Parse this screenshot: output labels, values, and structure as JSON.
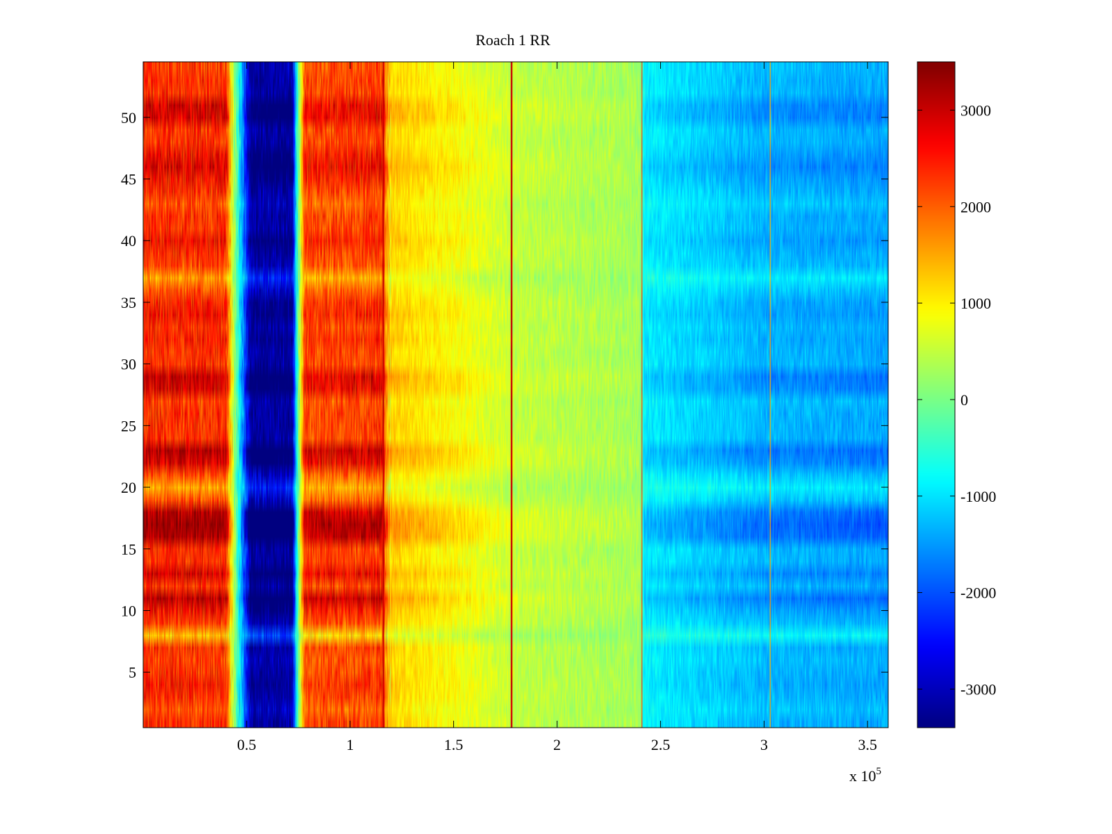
{
  "chart_data": {
    "type": "heatmap",
    "title": "Roach 1 RR",
    "xlabel": "",
    "ylabel": "",
    "x_multiplier_label": "x 10",
    "x_multiplier_exponent": "5",
    "xlim": [
      0,
      360000
    ],
    "ylim": [
      0.5,
      54.5
    ],
    "x_ticks": [
      0.5,
      1,
      1.5,
      2,
      2.5,
      3,
      3.5
    ],
    "x_tick_labels": [
      "0.5",
      "1",
      "1.5",
      "2",
      "2.5",
      "3",
      "3.5"
    ],
    "y_ticks": [
      5,
      10,
      15,
      20,
      25,
      30,
      35,
      40,
      45,
      50
    ],
    "y_tick_labels": [
      "5",
      "10",
      "15",
      "20",
      "25",
      "30",
      "35",
      "40",
      "45",
      "50"
    ],
    "colorbar": {
      "colormap": "jet",
      "clim": [
        -3400,
        3500
      ],
      "ticks": [
        -3000,
        -2000,
        -1000,
        0,
        1000,
        2000,
        3000
      ],
      "tick_labels": [
        "-3000",
        "-2000",
        "-1000",
        "0",
        "1000",
        "2000",
        "3000"
      ]
    },
    "rows": 54,
    "column_profile": [
      {
        "x": 0,
        "value": 2600
      },
      {
        "x": 40000,
        "value": 2600
      },
      {
        "x": 44000,
        "value": 500
      },
      {
        "x": 48000,
        "value": -1200
      },
      {
        "x": 52000,
        "value": -3000
      },
      {
        "x": 72000,
        "value": -3000
      },
      {
        "x": 74000,
        "value": -600
      },
      {
        "x": 78000,
        "value": 2400
      },
      {
        "x": 115000,
        "value": 2500
      },
      {
        "x": 120000,
        "value": 1200
      },
      {
        "x": 150000,
        "value": 900
      },
      {
        "x": 180000,
        "value": 500
      },
      {
        "x": 240000,
        "value": 300
      },
      {
        "x": 242000,
        "value": -900
      },
      {
        "x": 300000,
        "value": -1300
      },
      {
        "x": 360000,
        "value": -1400
      }
    ],
    "vertical_lines": [
      {
        "x": 116000,
        "value": 3000
      },
      {
        "x": 178000,
        "value": 3000
      },
      {
        "x": 241000,
        "value": 2200
      },
      {
        "x": 303000,
        "value": 1500
      }
    ],
    "row_strength": [
      1.0,
      0.9,
      1.0,
      1.05,
      1.0,
      0.95,
      1.0,
      0.6,
      0.95,
      1.1,
      1.3,
      1.0,
      1.2,
      1.0,
      1.0,
      1.35,
      1.4,
      1.3,
      0.9,
      0.7,
      0.9,
      1.2,
      1.3,
      1.0,
      1.0,
      1.0,
      0.95,
      1.2,
      1.25,
      1.0,
      1.0,
      1.05,
      1.0,
      1.1,
      1.05,
      0.9,
      0.7,
      0.95,
      1.0,
      1.1,
      1.0,
      1.0,
      0.9,
      1.0,
      1.1,
      1.2,
      1.1,
      1.0,
      1.0,
      1.2,
      1.2,
      1.0,
      1.0,
      0.95
    ]
  }
}
